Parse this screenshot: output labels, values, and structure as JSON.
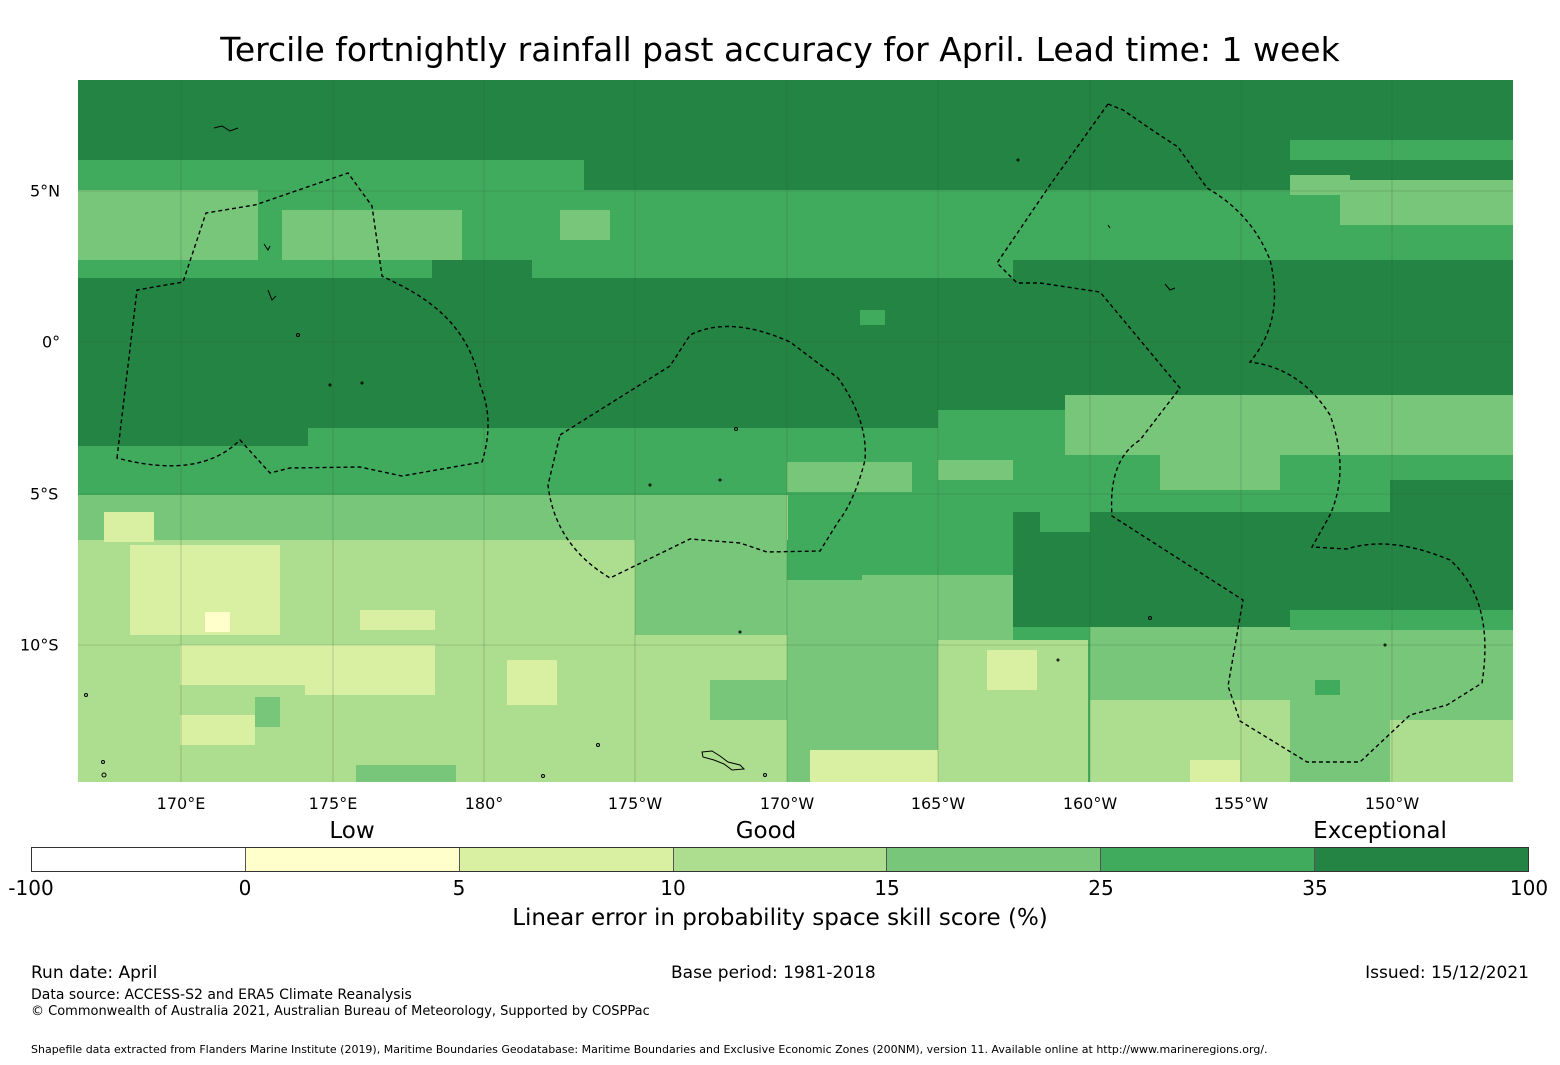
{
  "title": "Tercile fortnightly rainfall past accuracy for April. Lead time: 1 week",
  "map": {
    "longitude_labels": [
      "170°E",
      "175°E",
      "180°",
      "175°W",
      "170°W",
      "165°W",
      "160°W",
      "155°W",
      "150°W"
    ],
    "latitude_labels": [
      "5°N",
      "0°",
      "5°S",
      "10°S"
    ],
    "gridlines": true,
    "overlay": "dashed EEZ boundaries (black), coastlines (black)"
  },
  "legend": {
    "category_labels": [
      "Low",
      "Good",
      "Exceptional"
    ],
    "bins": [
      {
        "from": "-100",
        "to": "0",
        "color": "#ffffff"
      },
      {
        "from": "0",
        "to": "5",
        "color": "#ffffcc"
      },
      {
        "from": "5",
        "to": "10",
        "color": "#d9f0a3"
      },
      {
        "from": "10",
        "to": "15",
        "color": "#addd8e"
      },
      {
        "from": "15",
        "to": "25",
        "color": "#78c679"
      },
      {
        "from": "25",
        "to": "35",
        "color": "#41ab5d"
      },
      {
        "from": "35",
        "to": "100",
        "color": "#238443"
      }
    ],
    "tick_labels": [
      "-100",
      "0",
      "5",
      "10",
      "15",
      "25",
      "35",
      "100"
    ],
    "title": "Linear error in probability space skill score (%)"
  },
  "footer": {
    "run_date": "Run date: April",
    "base_period": "Base period: 1981-2018",
    "issued": "Issued: 15/12/2021",
    "data_source": "Data source: ACCESS-S2 and ERA5 Climate Reanalysis",
    "copyright": "© Commonwealth of Australia 2021, Australian Bureau of Meteorology, Supported by COSPPac",
    "shapefile_credit": "Shapefile data extracted from Flanders Marine Institute (2019), Maritime Boundaries Geodatabase: Maritime Boundaries and Exclusive Economic Zones (200NM), version 11. Available online at http://www.marineregions.org/."
  }
}
